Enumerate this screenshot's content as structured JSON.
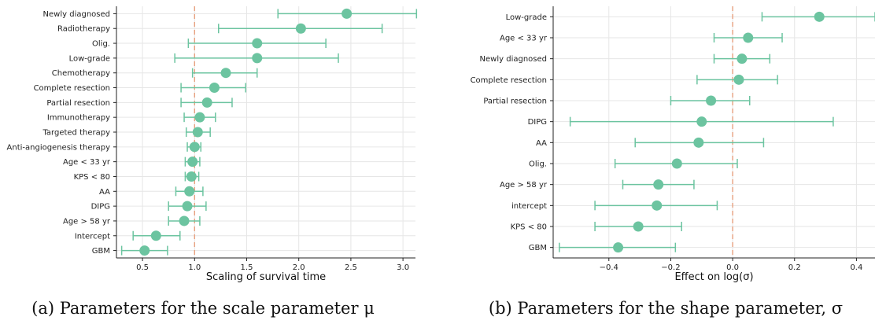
{
  "colors": {
    "marker": "#6cc4a0",
    "reference_line": "#e8a07f",
    "grid": "#e6e6e6"
  },
  "chart_data": [
    {
      "type": "scatter",
      "subtype": "forest-plot",
      "caption": "(a) Parameters for the scale parameter μ",
      "xlabel": "Scaling of survival time",
      "ylabel": "",
      "xlim": [
        0.25,
        3.12
      ],
      "xticks": [
        0.5,
        1.0,
        1.5,
        2.0,
        2.5,
        3.0
      ],
      "xtick_labels": [
        "0.5",
        "1.0",
        "1.5",
        "2.0",
        "2.5",
        "3.0"
      ],
      "reference_line": 1.0,
      "grid": true,
      "categories": [
        "Newly diagnosed",
        "Radiotherapy",
        "Olig.",
        "Low-grade",
        "Chemotherapy",
        "Complete resection",
        "Partial resection",
        "Immunotherapy",
        "Targeted therapy",
        "Anti-angiogenesis therapy",
        "Age < 33 yr",
        "KPS < 80",
        "AA",
        "DIPG",
        "Age > 58 yr",
        "Intercept",
        "GBM"
      ],
      "estimates": [
        2.46,
        2.02,
        1.6,
        1.6,
        1.3,
        1.19,
        1.12,
        1.05,
        1.03,
        1.0,
        0.98,
        0.97,
        0.95,
        0.93,
        0.9,
        0.63,
        0.52
      ],
      "lower": [
        1.8,
        1.23,
        0.94,
        0.81,
        0.98,
        0.87,
        0.87,
        0.9,
        0.92,
        0.93,
        0.91,
        0.91,
        0.82,
        0.75,
        0.75,
        0.41,
        0.3
      ],
      "upper": [
        3.13,
        2.8,
        2.26,
        2.38,
        1.6,
        1.49,
        1.36,
        1.2,
        1.15,
        1.06,
        1.05,
        1.04,
        1.08,
        1.11,
        1.05,
        0.86,
        0.74
      ]
    },
    {
      "type": "scatter",
      "subtype": "forest-plot",
      "caption": "(b) Parameters for the shape parameter, σ",
      "xlabel": "Effect on log(σ)",
      "ylabel": "",
      "xlim": [
        -0.58,
        0.46
      ],
      "xticks": [
        -0.4,
        -0.2,
        0.0,
        0.2,
        0.4
      ],
      "xtick_labels": [
        "−0.4",
        "−0.2",
        "0.0",
        "0.2",
        "0.4"
      ],
      "reference_line": 0.0,
      "grid": true,
      "categories": [
        "Low-grade",
        "Age < 33 yr",
        "Newly diagnosed",
        "Complete resection",
        "Partial resection",
        "DIPG",
        "AA",
        "Olig.",
        "Age > 58 yr",
        "intercept",
        "KPS < 80",
        "GBM"
      ],
      "estimates": [
        0.28,
        0.05,
        0.03,
        0.02,
        -0.07,
        -0.1,
        -0.11,
        -0.18,
        -0.24,
        -0.245,
        -0.305,
        -0.37
      ],
      "lower": [
        0.095,
        -0.06,
        -0.06,
        -0.115,
        -0.2,
        -0.525,
        -0.315,
        -0.38,
        -0.355,
        -0.445,
        -0.445,
        -0.56
      ],
      "upper": [
        0.46,
        0.16,
        0.12,
        0.145,
        0.055,
        0.325,
        0.1,
        0.015,
        -0.125,
        -0.05,
        -0.165,
        -0.185
      ]
    }
  ]
}
